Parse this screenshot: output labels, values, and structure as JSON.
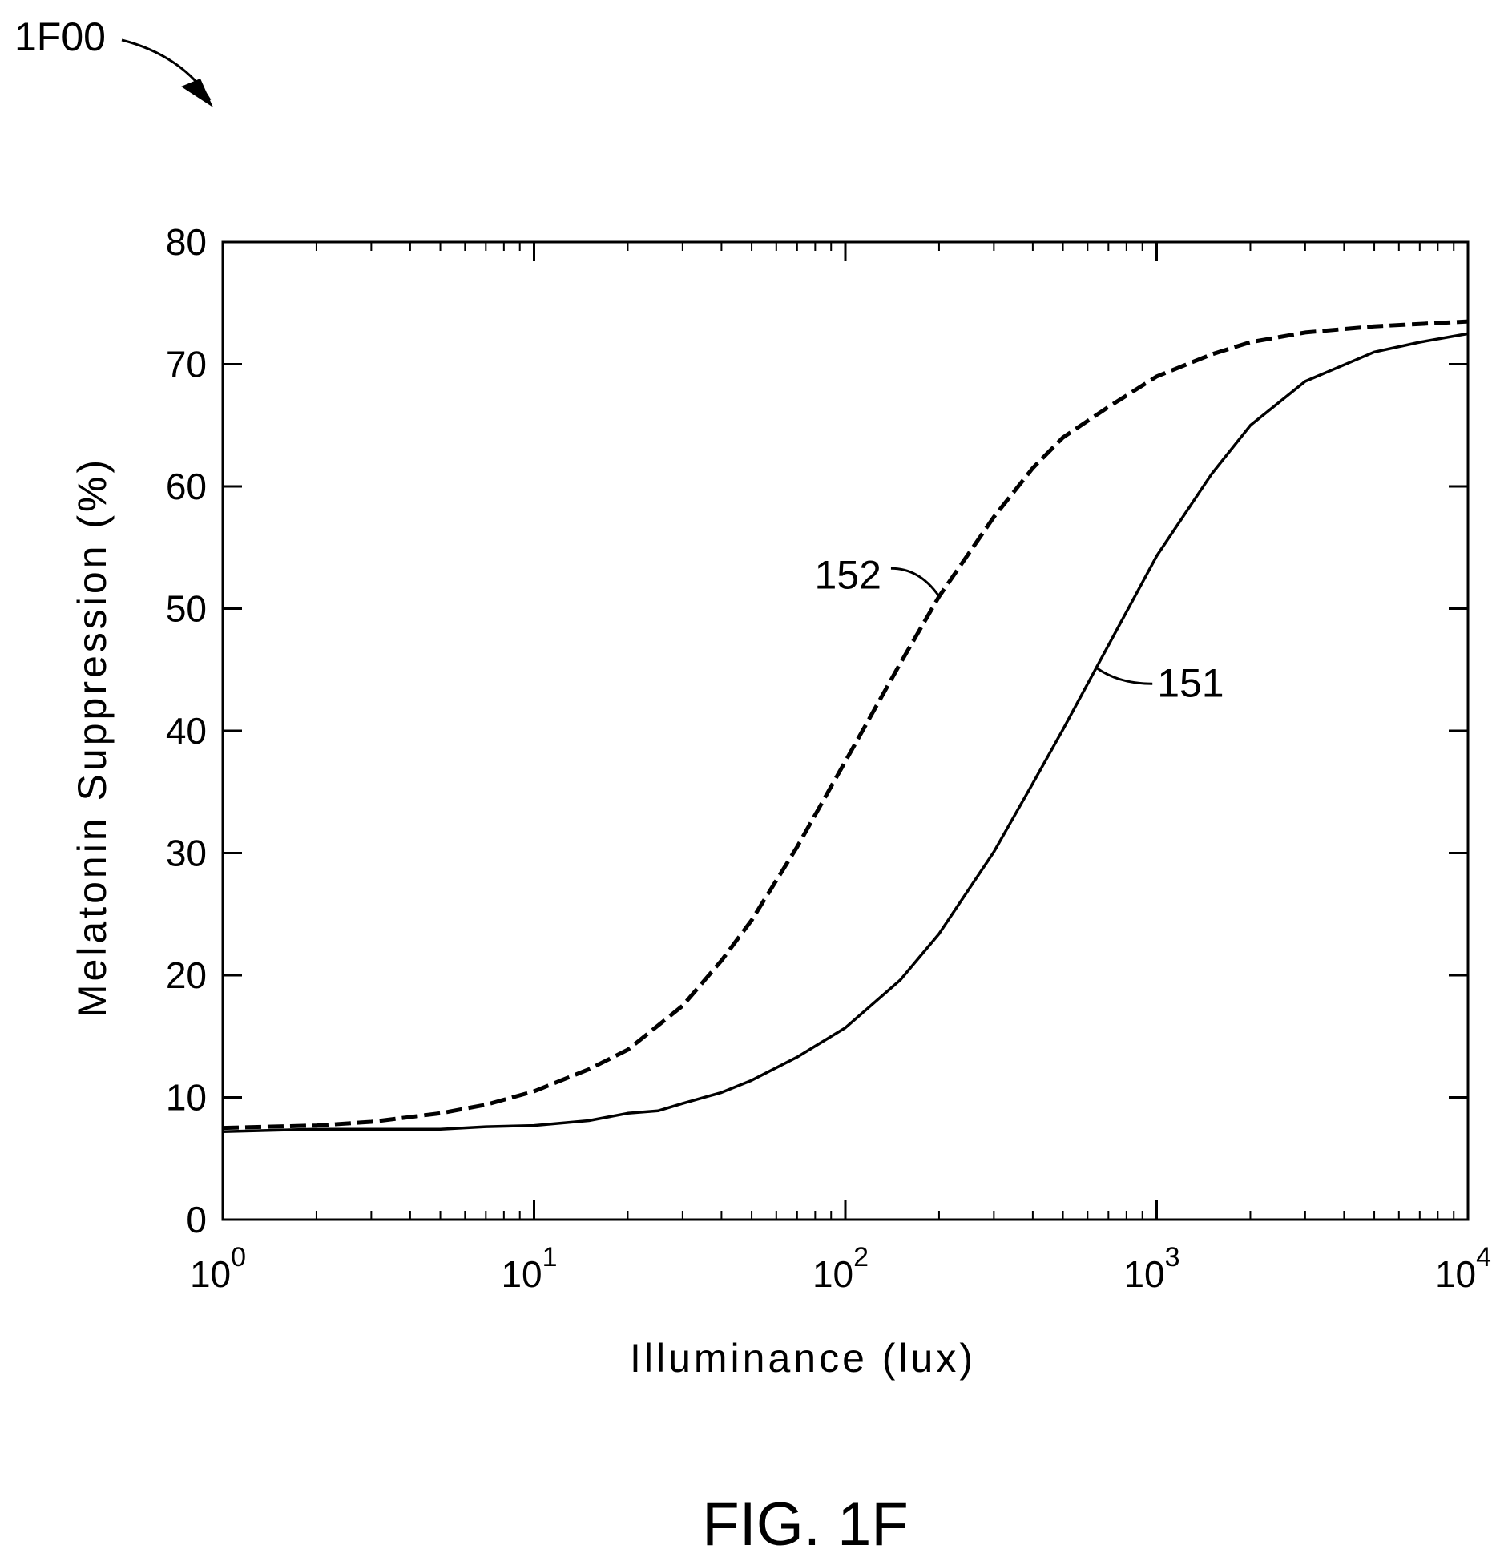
{
  "figure_ref": "1F00",
  "caption": "FIG. 1F",
  "chart_data": {
    "type": "line",
    "title": "",
    "xlabel": "Illuminance (lux)",
    "ylabel": "Melatonin Suppression (%)",
    "xscale": "log",
    "xlim": [
      1,
      10000
    ],
    "ylim": [
      0,
      80
    ],
    "x_ticks": [
      {
        "value": 1,
        "base": "10",
        "exp": "0"
      },
      {
        "value": 10,
        "base": "10",
        "exp": "1"
      },
      {
        "value": 100,
        "base": "10",
        "exp": "2"
      },
      {
        "value": 1000,
        "base": "10",
        "exp": "3"
      },
      {
        "value": 10000,
        "base": "10",
        "exp": "4"
      }
    ],
    "y_ticks": [
      {
        "value": 0,
        "label": "0"
      },
      {
        "value": 10,
        "label": "10"
      },
      {
        "value": 20,
        "label": "20"
      },
      {
        "value": 30,
        "label": "30"
      },
      {
        "value": 40,
        "label": "40"
      },
      {
        "value": 50,
        "label": "50"
      },
      {
        "value": 60,
        "label": "60"
      },
      {
        "value": 70,
        "label": "70"
      },
      {
        "value": 80,
        "label": "80"
      }
    ],
    "grid": false,
    "series": [
      {
        "name": "151",
        "style": "solid",
        "color": "#000000",
        "x": [
          1,
          2,
          3,
          5,
          7,
          10,
          15,
          20,
          25,
          30,
          40,
          50,
          70,
          100,
          150,
          200,
          300,
          400,
          500,
          700,
          1000,
          1500,
          2000,
          3000,
          5000,
          7000,
          10000
        ],
        "y": [
          7.2,
          7.4,
          7.4,
          7.4,
          7.6,
          7.7,
          8.1,
          8.7,
          8.9,
          9.5,
          10.4,
          11.4,
          13.3,
          15.7,
          19.6,
          23.4,
          30.1,
          35.7,
          40.1,
          47.0,
          54.3,
          61.0,
          65.0,
          68.6,
          71.0,
          71.8,
          72.5
        ]
      },
      {
        "name": "152",
        "style": "dashed",
        "color": "#000000",
        "x": [
          1,
          2,
          3,
          5,
          7,
          10,
          15,
          20,
          30,
          40,
          50,
          70,
          100,
          150,
          200,
          300,
          400,
          500,
          700,
          1000,
          1500,
          2000,
          3000,
          5000,
          7000,
          10000
        ],
        "y": [
          7.5,
          7.7,
          8.0,
          8.7,
          9.4,
          10.5,
          12.3,
          13.9,
          17.5,
          21.2,
          24.5,
          30.5,
          37.5,
          45.5,
          51.0,
          57.5,
          61.5,
          64.0,
          66.5,
          69.0,
          70.8,
          71.8,
          72.6,
          73.1,
          73.3,
          73.5
        ]
      }
    ],
    "annotations": [
      {
        "text": "152",
        "series": "152",
        "at_x": 200
      },
      {
        "text": "151",
        "series": "151",
        "at_x": 640
      }
    ]
  }
}
